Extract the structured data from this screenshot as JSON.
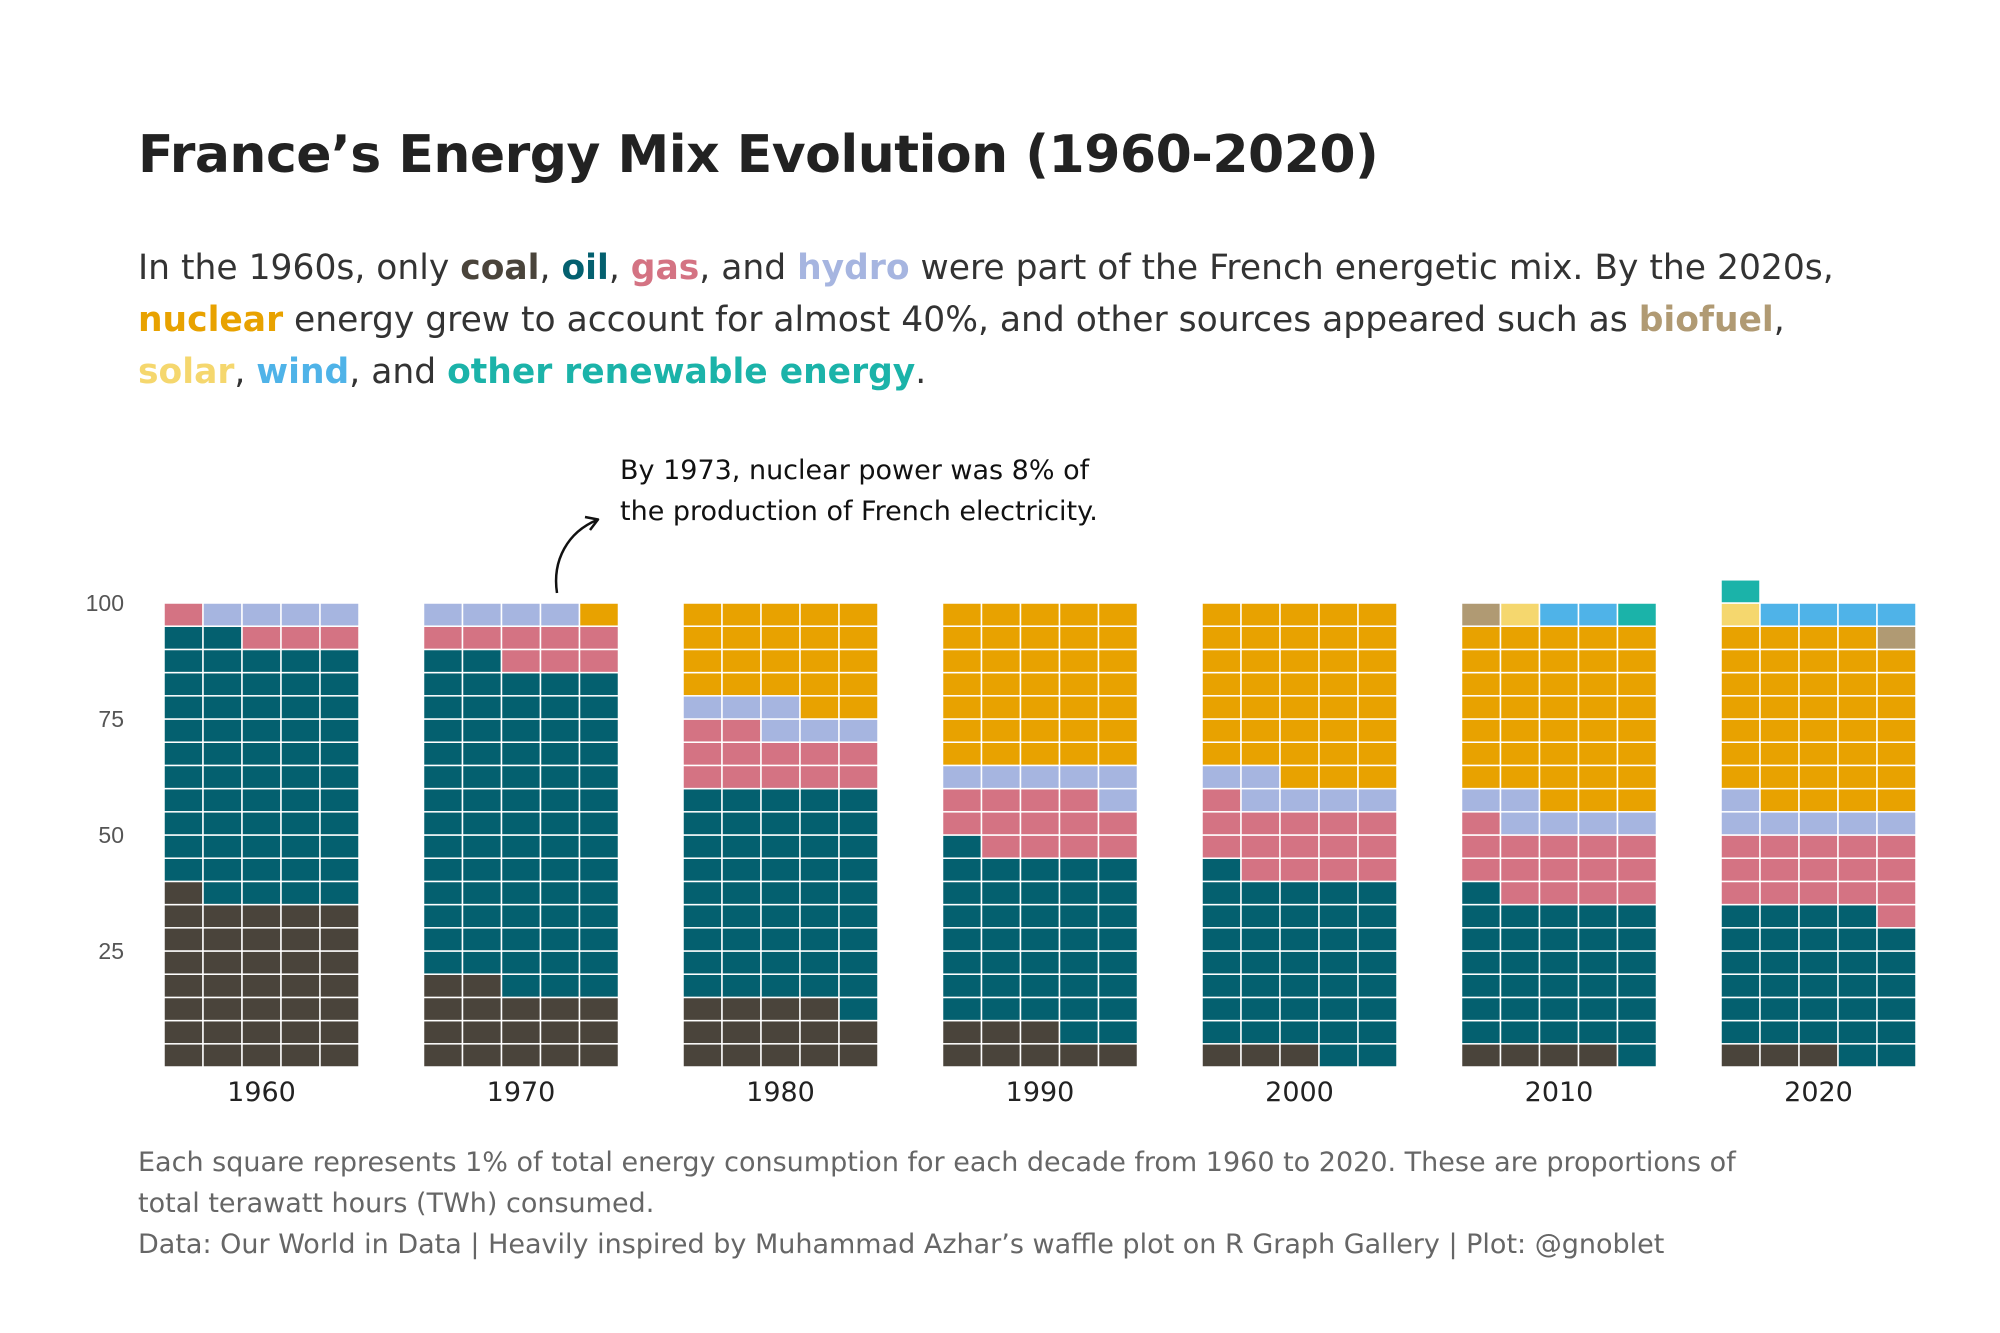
{
  "title": "France’s Energy Mix Evolution (1960-2020)",
  "subtitle": {
    "parts": [
      {
        "text": "In the 1960s, only "
      },
      {
        "text": "coal",
        "color": "#4a443b",
        "bold": true
      },
      {
        "text": ", "
      },
      {
        "text": "oil",
        "color": "#04606f",
        "bold": true
      },
      {
        "text": ", "
      },
      {
        "text": "gas",
        "color": "#d47383",
        "bold": true
      },
      {
        "text": ", and "
      },
      {
        "text": "hydro",
        "color": "#a6b5e0",
        "bold": true
      },
      {
        "text": " were part of the French energetic mix. By the 2020s, "
      },
      {
        "text": "nuclear",
        "color": "#e8a200",
        "bold": true
      },
      {
        "text": " energy grew to account for almost 40%, and other sources appeared such as "
      },
      {
        "text": "biofuel",
        "color": "#b09a73",
        "bold": true
      },
      {
        "text": ", "
      },
      {
        "text": "solar",
        "color": "#f5d76e",
        "bold": true
      },
      {
        "text": ", "
      },
      {
        "text": "wind",
        "color": "#4fb3e8",
        "bold": true
      },
      {
        "text": ", and "
      },
      {
        "text": "other renewable energy",
        "color": "#1bb3a9",
        "bold": true
      },
      {
        "text": "."
      }
    ]
  },
  "annotation": {
    "line1": "By 1973, nuclear power was 8% of",
    "line2": "the production of French electricity."
  },
  "footer": {
    "line1": "Each square represents 1% of total energy consumption for each decade from 1960 to 2020. These are proportions of",
    "line2": "total terawatt hours (TWh) consumed.",
    "line3": "Data: Our World in Data | Heavily inspired by Muhammad Azhar’s waffle plot on R Graph Gallery | Plot: @gnoblet"
  },
  "chart_data": {
    "type": "waffle",
    "unit": "1 square = 1% of total energy consumption",
    "categories": [
      "1960",
      "1970",
      "1980",
      "1990",
      "2000",
      "2010",
      "2020"
    ],
    "y_ticks": [
      25,
      50,
      75,
      100
    ],
    "ylim": [
      0,
      100
    ],
    "grid_columns": 5,
    "series": [
      {
        "name": "coal",
        "color": "#4a443b",
        "values": [
          36,
          17,
          14,
          8,
          3,
          4,
          3
        ]
      },
      {
        "name": "oil",
        "color": "#04606f",
        "values": [
          56,
          70,
          46,
          38,
          38,
          32,
          31
        ]
      },
      {
        "name": "gas",
        "color": "#d47383",
        "values": [
          4,
          8,
          12,
          13,
          15,
          15,
          16
        ]
      },
      {
        "name": "hydro",
        "color": "#a6b5e0",
        "values": [
          4,
          4,
          6,
          6,
          6,
          6,
          6
        ]
      },
      {
        "name": "nuclear",
        "color": "#e8a200",
        "values": [
          0,
          1,
          22,
          35,
          38,
          38,
          38
        ]
      },
      {
        "name": "biofuel",
        "color": "#b09a73",
        "values": [
          0,
          0,
          0,
          0,
          0,
          1,
          1
        ]
      },
      {
        "name": "solar",
        "color": "#f5d76e",
        "values": [
          0,
          0,
          0,
          0,
          0,
          1,
          1
        ]
      },
      {
        "name": "wind",
        "color": "#4fb3e8",
        "values": [
          0,
          0,
          0,
          0,
          0,
          2,
          4
        ]
      },
      {
        "name": "other renewable energy",
        "color": "#1bb3a9",
        "values": [
          0,
          0,
          0,
          0,
          0,
          1,
          1
        ]
      }
    ]
  }
}
